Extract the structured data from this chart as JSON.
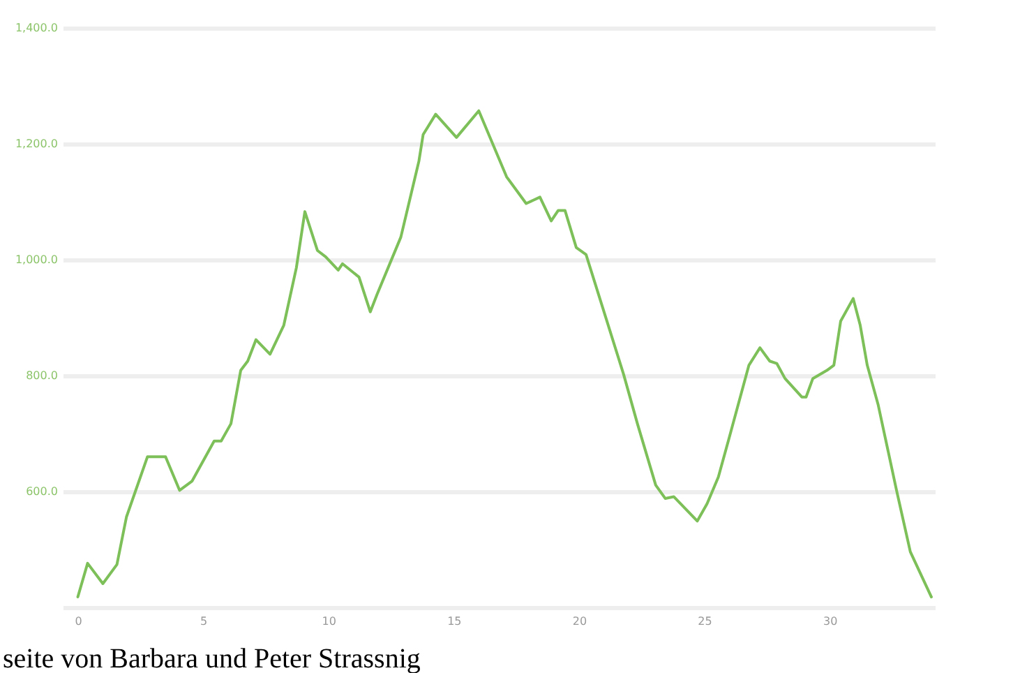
{
  "chart_data": {
    "type": "line",
    "x": [
      0,
      0.39,
      1.0,
      1.56,
      1.94,
      2.78,
      3.5,
      4.06,
      4.56,
      5.44,
      5.72,
      6.11,
      6.5,
      6.78,
      7.11,
      7.67,
      8.22,
      8.72,
      9.06,
      9.56,
      9.89,
      10.39,
      10.56,
      11.22,
      11.67,
      11.94,
      12.89,
      13.61,
      13.78,
      14.28,
      15.11,
      16.0,
      17.11,
      17.89,
      18.44,
      18.89,
      19.17,
      19.44,
      19.89,
      20.28,
      21.78,
      22.33,
      23.06,
      23.44,
      23.78,
      24.72,
      25.11,
      25.56,
      26.0,
      26.78,
      27.22,
      27.61,
      27.89,
      28.22,
      28.89,
      29.06,
      29.33,
      29.89,
      30.17,
      30.44,
      30.94,
      31.22,
      31.5,
      31.94,
      32.67,
      33.22,
      34.06
    ],
    "series": [
      {
        "color": "#7dbf58",
        "values": [
          418,
          476,
          441,
          474,
          556,
          660,
          660,
          602,
          618,
          687,
          687,
          717,
          809,
          825,
          862,
          837,
          887,
          986,
          1083,
          1016,
          1005,
          982,
          993,
          970,
          910,
          940,
          1039,
          1170,
          1216,
          1251,
          1211,
          1257,
          1143,
          1097,
          1108,
          1067,
          1085,
          1085,
          1021,
          1009,
          802,
          717,
          611,
          588,
          591,
          549,
          579,
          625,
          694,
          818,
          848,
          825,
          821,
          795,
          763,
          763,
          795,
          809,
          818,
          894,
          933,
          887,
          818,
          749,
          602,
          496,
          418
        ]
      }
    ],
    "xlim": [
      -0.6,
      34.2
    ],
    "xticks": [
      0,
      5,
      10,
      15,
      20,
      25,
      30
    ],
    "ylim": [
      400,
      1400
    ],
    "yticks": [
      {
        "value": 400,
        "label": null
      },
      {
        "value": 600,
        "label": "600.0"
      },
      {
        "value": 800,
        "label": "800.0"
      },
      {
        "value": 1000,
        "label": "1,000.0"
      },
      {
        "value": 1200,
        "label": "1,200.0"
      },
      {
        "value": 1400,
        "label": "1,400.0"
      }
    ],
    "grid": "y",
    "marker": "none",
    "line_style": "solid",
    "annotations": [
      "seite von Barbara und Peter Strassnig"
    ]
  }
}
